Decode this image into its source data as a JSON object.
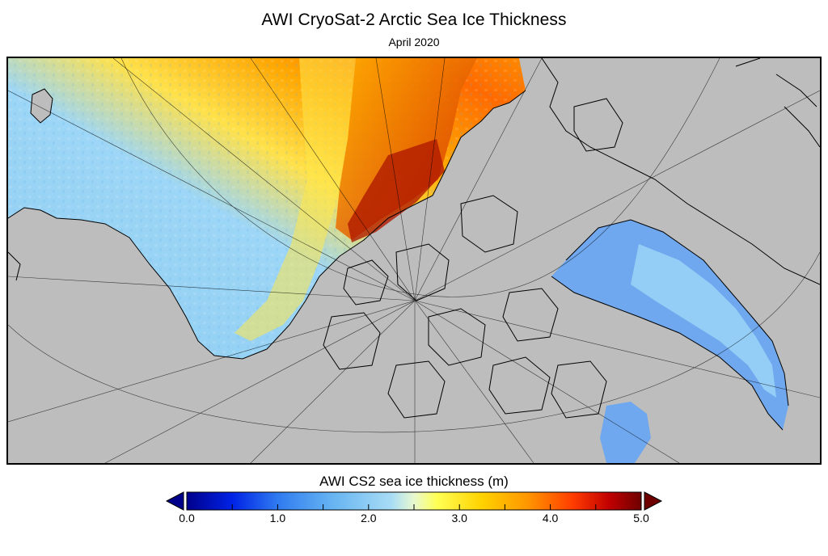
{
  "title": "AWI CryoSat-2 Arctic Sea Ice Thickness",
  "subtitle": "April 2020",
  "colorbar": {
    "title": "AWI CS2 sea ice thickness (m)",
    "min": 0.0,
    "max": 5.0,
    "ticks": [
      "0.0",
      "1.0",
      "2.0",
      "3.0",
      "4.0",
      "5.0"
    ],
    "extend": "both",
    "colors": [
      "#00008b",
      "#0022e6",
      "#2f7bf0",
      "#66b4f2",
      "#a8dcf5",
      "#ffff55",
      "#ffd200",
      "#ff9600",
      "#ff3c00",
      "#c00000",
      "#6e0000"
    ]
  },
  "map": {
    "land_color": "#bdbdbd",
    "coastline_color": "#000000",
    "graticule_color": "#000000"
  }
}
